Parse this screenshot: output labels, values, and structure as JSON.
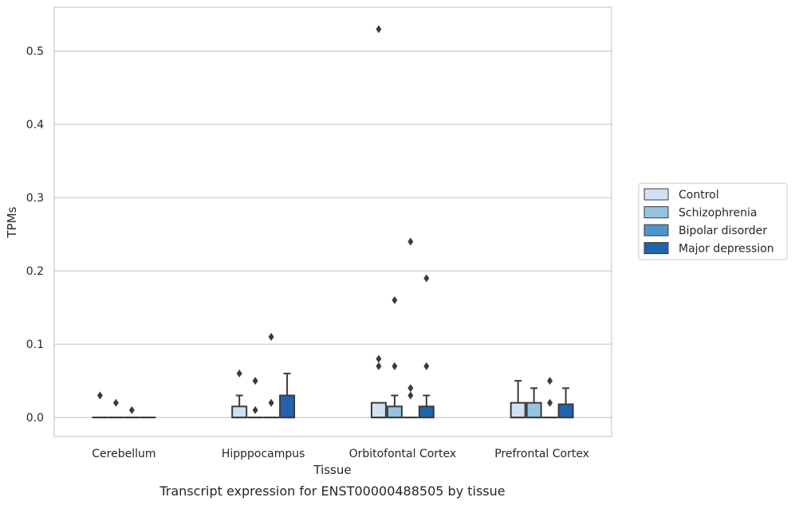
{
  "chart_data": {
    "type": "box",
    "title": "Transcript expression for ENST00000488505 by tissue",
    "xlabel": "Tissue",
    "ylabel": "TPMs",
    "ylim": [
      -0.026,
      0.56
    ],
    "yticks": [
      0.0,
      0.1,
      0.2,
      0.3,
      0.4,
      0.5
    ],
    "ytick_labels": [
      "0.0",
      "0.1",
      "0.2",
      "0.3",
      "0.4",
      "0.5"
    ],
    "grid": "horizontal",
    "legend_position": "right",
    "categories": [
      "Cerebellum",
      "Hipppocampus",
      "Orbitofontal Cortex",
      "Prefrontal Cortex"
    ],
    "series": [
      {
        "name": "Control",
        "color": "#d0e1f2",
        "boxes": [
          {
            "q1": 0,
            "median": 0,
            "q3": 0,
            "whisker_low": 0,
            "whisker_high": 0,
            "outliers": [
              0.03
            ]
          },
          {
            "q1": 0,
            "median": 0,
            "q3": 0.015,
            "whisker_low": 0,
            "whisker_high": 0.03,
            "outliers": [
              0.06
            ]
          },
          {
            "q1": 0,
            "median": 0,
            "q3": 0.02,
            "whisker_low": 0,
            "whisker_high": 0.02,
            "outliers": [
              0.07,
              0.08,
              0.53
            ]
          },
          {
            "q1": 0,
            "median": 0,
            "q3": 0.02,
            "whisker_low": 0,
            "whisker_high": 0.05,
            "outliers": []
          }
        ]
      },
      {
        "name": "Schizophrenia",
        "color": "#94c4df",
        "boxes": [
          {
            "q1": 0,
            "median": 0,
            "q3": 0,
            "whisker_low": 0,
            "whisker_high": 0,
            "outliers": [
              0.02
            ]
          },
          {
            "q1": 0,
            "median": 0,
            "q3": 0,
            "whisker_low": 0,
            "whisker_high": 0,
            "outliers": [
              0.01,
              0.05
            ]
          },
          {
            "q1": 0,
            "median": 0,
            "q3": 0.015,
            "whisker_low": 0,
            "whisker_high": 0.03,
            "outliers": [
              0.07,
              0.16
            ]
          },
          {
            "q1": 0,
            "median": 0,
            "q3": 0.02,
            "whisker_low": 0,
            "whisker_high": 0.04,
            "outliers": []
          }
        ]
      },
      {
        "name": "Bipolar disorder",
        "color": "#4a98c9",
        "boxes": [
          {
            "q1": 0,
            "median": 0,
            "q3": 0,
            "whisker_low": 0,
            "whisker_high": 0,
            "outliers": [
              0.01
            ]
          },
          {
            "q1": 0,
            "median": 0,
            "q3": 0,
            "whisker_low": 0,
            "whisker_high": 0,
            "outliers": [
              0.02,
              0.11
            ]
          },
          {
            "q1": 0,
            "median": 0,
            "q3": 0,
            "whisker_low": 0,
            "whisker_high": 0,
            "outliers": [
              0.03,
              0.04,
              0.24
            ]
          },
          {
            "q1": 0,
            "median": 0,
            "q3": 0,
            "whisker_low": 0,
            "whisker_high": 0,
            "outliers": [
              0.02,
              0.05
            ]
          }
        ]
      },
      {
        "name": "Major depression",
        "color": "#2164ab",
        "boxes": [
          {
            "q1": 0,
            "median": 0,
            "q3": 0,
            "whisker_low": 0,
            "whisker_high": 0,
            "outliers": []
          },
          {
            "q1": 0,
            "median": 0,
            "q3": 0.03,
            "whisker_low": 0,
            "whisker_high": 0.06,
            "outliers": []
          },
          {
            "q1": 0,
            "median": 0,
            "q3": 0.015,
            "whisker_low": 0,
            "whisker_high": 0.03,
            "outliers": [
              0.07,
              0.19
            ]
          },
          {
            "q1": 0,
            "median": 0,
            "q3": 0.018,
            "whisker_low": 0,
            "whisker_high": 0.04,
            "outliers": []
          }
        ]
      }
    ]
  }
}
